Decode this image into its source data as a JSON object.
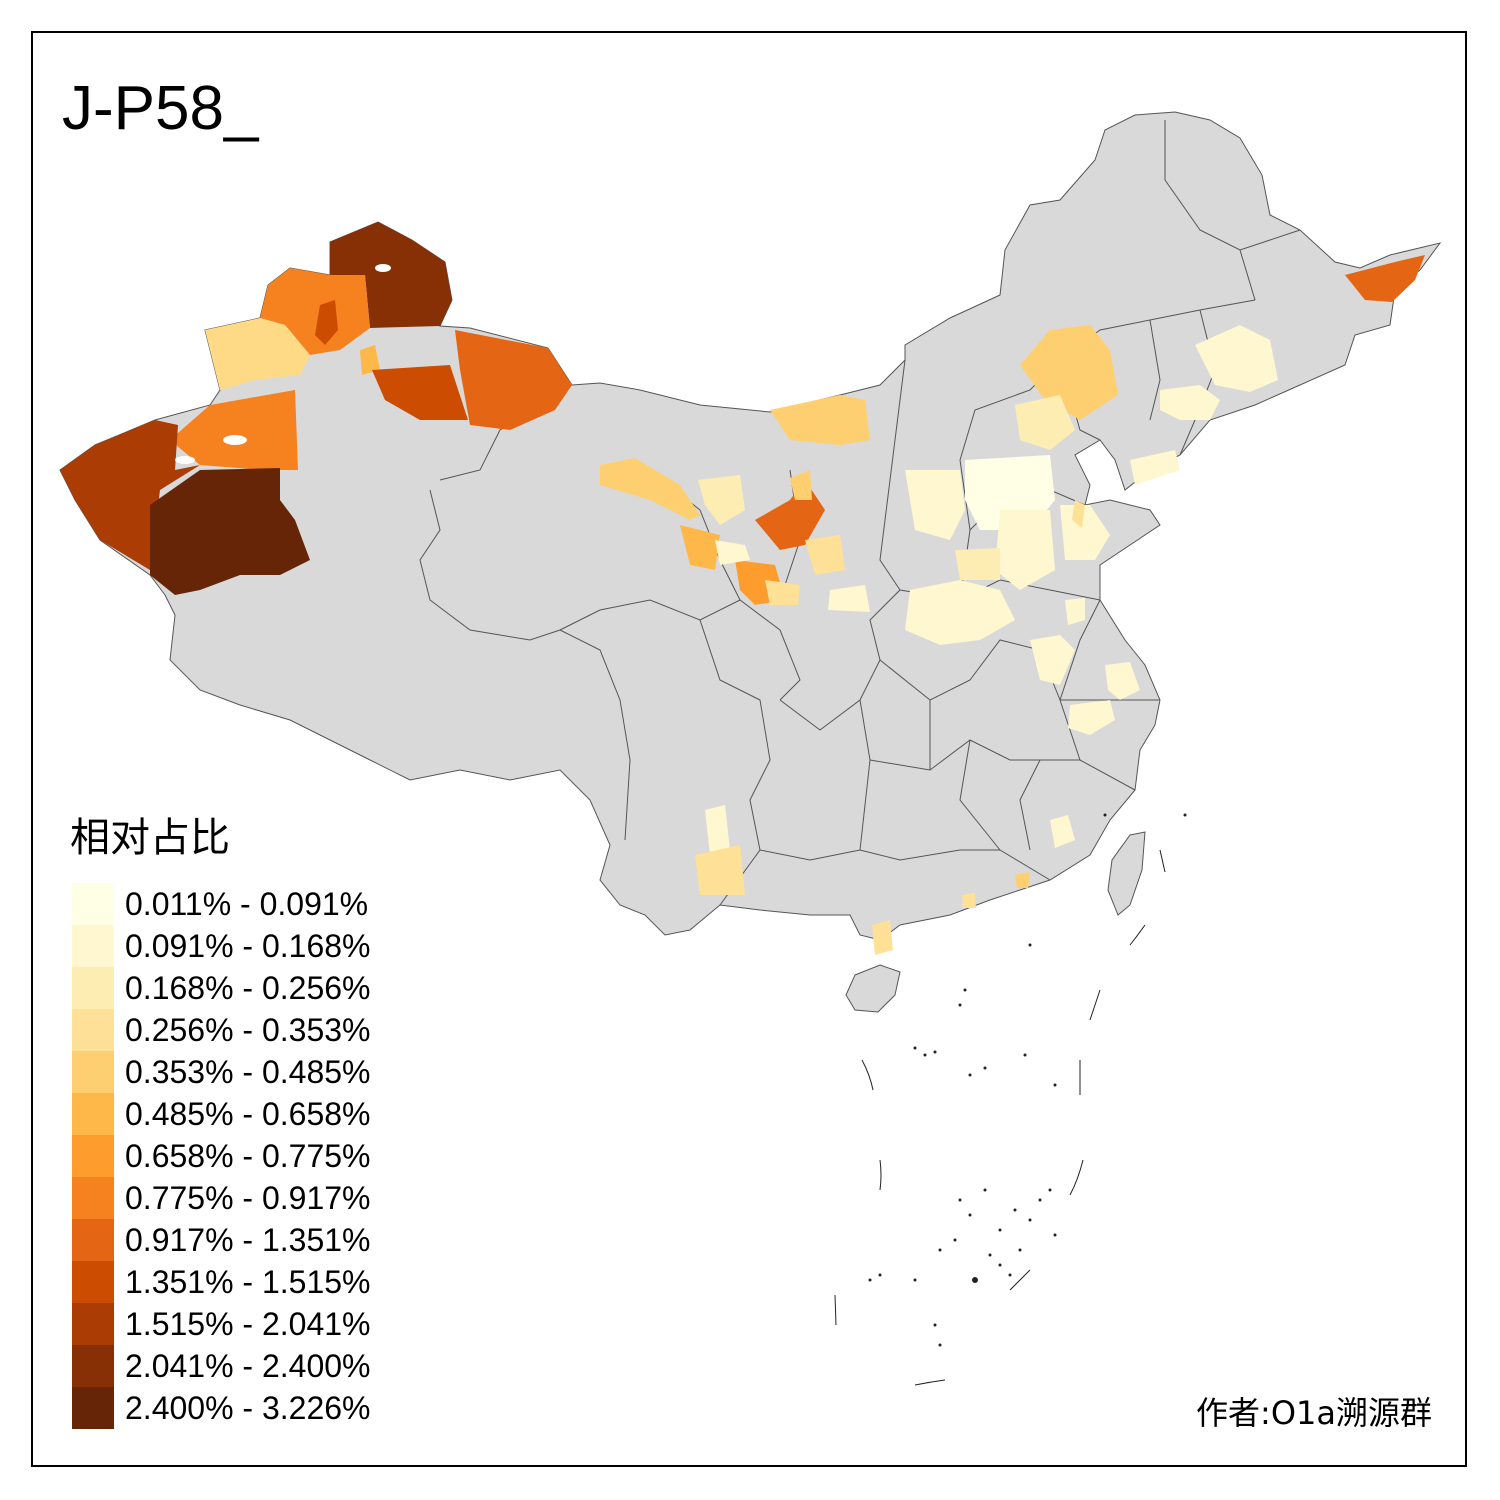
{
  "title": "J-P58_",
  "legend": {
    "title": "相对占比",
    "items": [
      {
        "label": "0.011% - 0.091%",
        "color": "#FFFFE5"
      },
      {
        "label": "0.091% - 0.168%",
        "color": "#FFF7CF"
      },
      {
        "label": "0.168% - 0.256%",
        "color": "#FEEDB3"
      },
      {
        "label": "0.256% - 0.353%",
        "color": "#FEE196"
      },
      {
        "label": "0.353% - 0.485%",
        "color": "#FECF70"
      },
      {
        "label": "0.485% - 0.658%",
        "color": "#FEB84A"
      },
      {
        "label": "0.658% - 0.775%",
        "color": "#FE9C2D"
      },
      {
        "label": "0.775% - 0.917%",
        "color": "#F5811F"
      },
      {
        "label": "0.917% - 1.351%",
        "color": "#E46513"
      },
      {
        "label": "1.351% - 1.515%",
        "color": "#CC4C02"
      },
      {
        "label": "1.515% - 2.041%",
        "color": "#AA3C04"
      },
      {
        "label": "2.041% - 2.400%",
        "color": "#883005"
      },
      {
        "label": "2.400% - 3.226%",
        "color": "#662506"
      }
    ]
  },
  "credit": "作者:O1a溯源群",
  "colors": {
    "land": "#D9D9D9",
    "border": "#555555",
    "frame": "#000000"
  }
}
